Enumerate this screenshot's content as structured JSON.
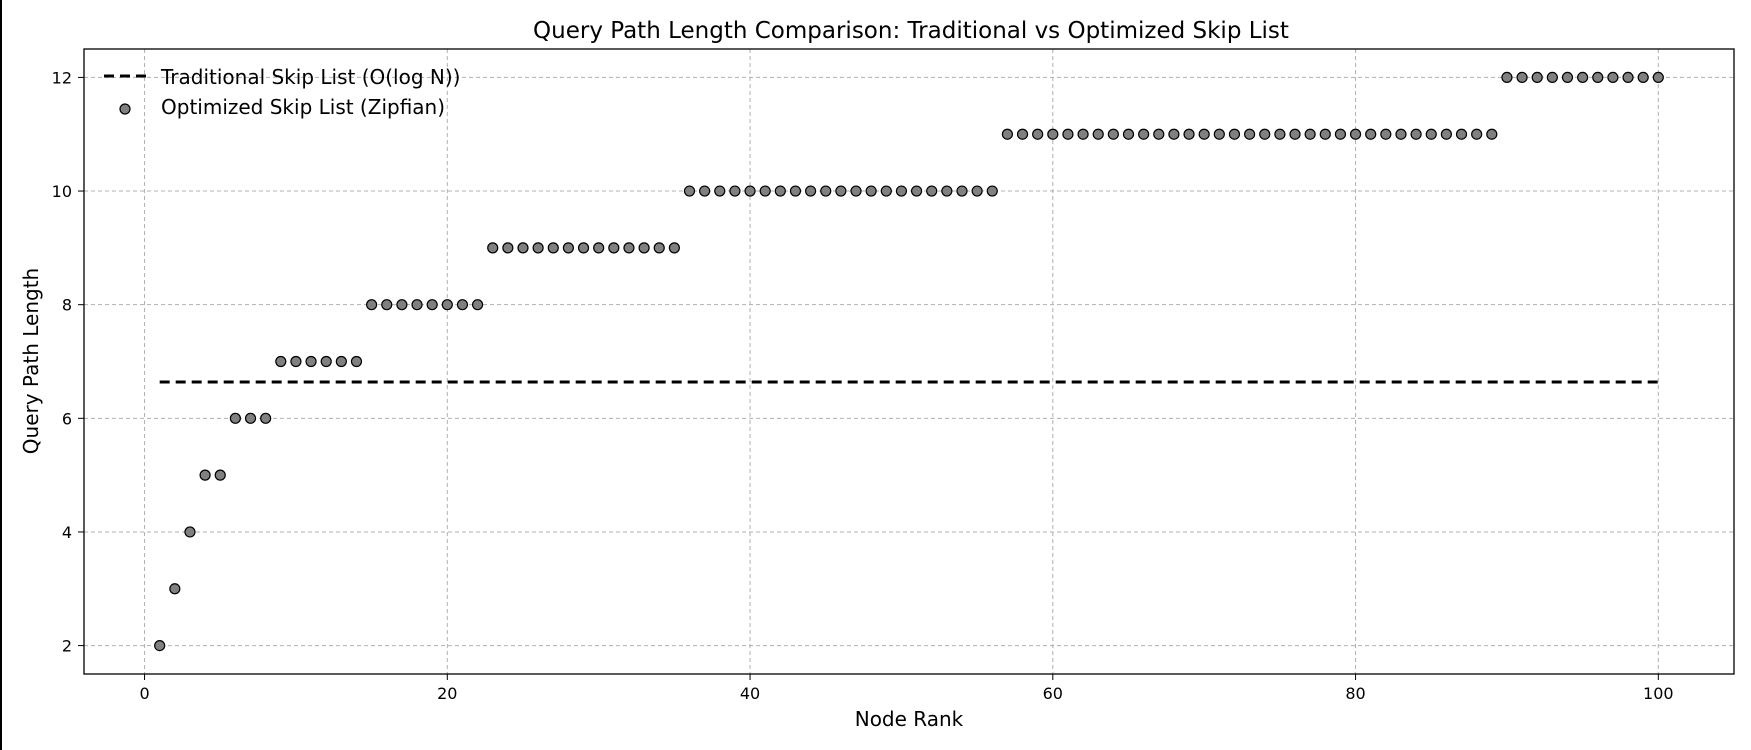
{
  "chart_data": {
    "type": "scatter",
    "title": "Query Path Length Comparison: Traditional vs Optimized Skip List",
    "xlabel": "Node Rank",
    "ylabel": "Query Path Length",
    "xlim": [
      -4,
      105
    ],
    "ylim": [
      1.5,
      12.5
    ],
    "xticks": [
      0,
      20,
      40,
      60,
      80,
      100
    ],
    "yticks": [
      2,
      4,
      6,
      8,
      10,
      12
    ],
    "grid": true,
    "legend_position": "top-left",
    "series": [
      {
        "name": "Traditional Skip List (O(log N))",
        "kind": "line",
        "style": "dashed",
        "color": "#000000",
        "x": [
          1,
          100
        ],
        "y": [
          6.64,
          6.64
        ]
      },
      {
        "name": "Optimized Skip List (Zipfian)",
        "kind": "scatter",
        "color": "#808080",
        "edgecolor": "#000000",
        "x": [
          1,
          2,
          3,
          4,
          5,
          6,
          7,
          8,
          9,
          10,
          11,
          12,
          13,
          14,
          15,
          16,
          17,
          18,
          19,
          20,
          21,
          22,
          23,
          24,
          25,
          26,
          27,
          28,
          29,
          30,
          31,
          32,
          33,
          34,
          35,
          36,
          37,
          38,
          39,
          40,
          41,
          42,
          43,
          44,
          45,
          46,
          47,
          48,
          49,
          50,
          51,
          52,
          53,
          54,
          55,
          56,
          57,
          58,
          59,
          60,
          61,
          62,
          63,
          64,
          65,
          66,
          67,
          68,
          69,
          70,
          71,
          72,
          73,
          74,
          75,
          76,
          77,
          78,
          79,
          80,
          81,
          82,
          83,
          84,
          85,
          86,
          87,
          88,
          89,
          90,
          91,
          92,
          93,
          94,
          95,
          96,
          97,
          98,
          99,
          100
        ],
        "y": [
          2,
          3,
          4,
          5,
          5,
          6,
          6,
          6,
          7,
          7,
          7,
          7,
          7,
          7,
          8,
          8,
          8,
          8,
          8,
          8,
          8,
          8,
          9,
          9,
          9,
          9,
          9,
          9,
          9,
          9,
          9,
          9,
          9,
          9,
          9,
          10,
          10,
          10,
          10,
          10,
          10,
          10,
          10,
          10,
          10,
          10,
          10,
          10,
          10,
          10,
          10,
          10,
          10,
          10,
          10,
          10,
          11,
          11,
          11,
          11,
          11,
          11,
          11,
          11,
          11,
          11,
          11,
          11,
          11,
          11,
          11,
          11,
          11,
          11,
          11,
          11,
          11,
          11,
          11,
          11,
          11,
          11,
          11,
          11,
          11,
          11,
          11,
          11,
          11,
          12,
          12,
          12,
          12,
          12,
          12,
          12,
          12,
          12,
          12,
          12
        ]
      }
    ]
  }
}
